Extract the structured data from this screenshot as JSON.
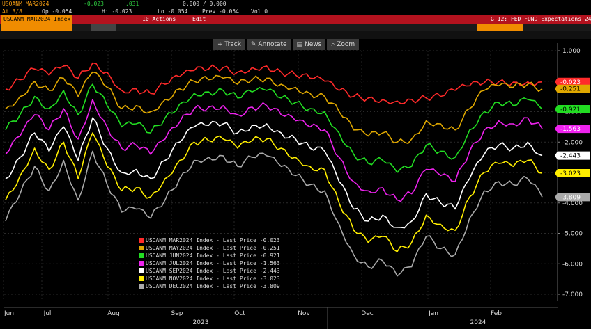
{
  "header": {
    "security": "USOANM MAR2024",
    "change": "-0.023",
    "change2": ".031",
    "value_range": "0.000 / 0.000",
    "at_label": "At 3/8",
    "op": "Op -0.054",
    "hi": "Hi -0.023",
    "lo": "Lo -0.054",
    "prev": "Prev -0.054",
    "vol": "Vol 0",
    "ticker_box": "USOANM MAR2024 Index",
    "actions_label": "10 Actions",
    "edit_label": "Edit",
    "page_title": "G 12: FED FUND Expectations 24"
  },
  "toolbar": {
    "track": "Track",
    "annotate": "Annotate",
    "news": "News",
    "zoom": "Zoom"
  },
  "icons": [
    "crosshair-icon",
    "pencil-icon",
    "news-icon",
    "magnifier-icon"
  ],
  "chart_data": {
    "type": "line",
    "x_axis": {
      "months": [
        "Jun",
        "Jul",
        "Aug",
        "Sep",
        "Oct",
        "Nov",
        "Dec",
        "Jan",
        "Feb"
      ],
      "years": [
        "2023",
        "2024"
      ]
    },
    "y_axis": {
      "ticks": [
        "1.000",
        "-0.000",
        "-1.000",
        "-2.000",
        "-3.000",
        "-4.000",
        "-5.000",
        "-6.000",
        "-7.000"
      ],
      "range": [
        -7.2,
        1.3
      ],
      "position": "right"
    },
    "grid": true,
    "legend_position": "bottom-left",
    "series": [
      {
        "name": "USOANM MAR2024 Index - Last Price -0.023",
        "last": "-0.023",
        "color": "#ff2a2a",
        "values": [
          -0.25,
          0.05,
          0.4,
          0.2,
          0.5,
          0.1,
          0.6,
          0.3,
          -0.3,
          -0.25,
          -0.4,
          -0.1,
          0.15,
          0.35,
          0.4,
          0.45,
          0.3,
          0.45,
          0.5,
          0.3,
          0.2,
          0.1,
          0.0,
          -0.3,
          -0.5,
          -0.55,
          -0.6,
          -0.65,
          -0.6,
          -0.55,
          -0.5,
          -0.3,
          -0.15,
          -0.05,
          -0.02,
          -0.03,
          -0.02,
          -0.023
        ]
      },
      {
        "name": "USOANM MAY2024 Index - Last Price -0.251",
        "last": "-0.251",
        "color": "#e0a800",
        "values": [
          -0.9,
          -0.5,
          0.0,
          -0.3,
          0.1,
          -0.5,
          0.3,
          -0.2,
          -0.9,
          -0.8,
          -1.0,
          -0.6,
          -0.25,
          0.0,
          0.05,
          0.1,
          -0.1,
          0.05,
          0.1,
          -0.1,
          -0.2,
          -0.4,
          -0.5,
          -1.0,
          -1.6,
          -1.8,
          -1.7,
          -2.0,
          -1.9,
          -1.3,
          -1.4,
          -1.6,
          -0.9,
          -0.3,
          -0.15,
          -0.2,
          -0.1,
          -0.251
        ]
      },
      {
        "name": "USOANM JUN2024 Index - Last Price -0.921",
        "last": "-0.921",
        "color": "#22dd22",
        "values": [
          -1.6,
          -1.1,
          -0.5,
          -0.9,
          -0.3,
          -1.1,
          -0.1,
          -0.8,
          -1.5,
          -1.4,
          -1.7,
          -1.2,
          -0.75,
          -0.4,
          -0.35,
          -0.3,
          -0.55,
          -0.35,
          -0.3,
          -0.55,
          -0.7,
          -0.9,
          -1.0,
          -1.7,
          -2.4,
          -2.7,
          -2.6,
          -3.0,
          -2.8,
          -2.1,
          -2.3,
          -2.5,
          -1.6,
          -1.0,
          -0.7,
          -0.8,
          -0.6,
          -0.921
        ]
      },
      {
        "name": "USOANM JUL2024 Index - Last Price -1.563",
        "last": "-1.563",
        "color": "#ee22ee",
        "values": [
          -2.4,
          -1.8,
          -1.1,
          -1.6,
          -0.9,
          -1.9,
          -0.6,
          -1.5,
          -2.2,
          -2.1,
          -2.4,
          -1.9,
          -1.35,
          -0.9,
          -0.85,
          -0.8,
          -1.1,
          -0.85,
          -0.8,
          -1.1,
          -1.3,
          -1.5,
          -1.6,
          -2.5,
          -3.3,
          -3.6,
          -3.5,
          -3.9,
          -3.7,
          -2.9,
          -3.1,
          -3.3,
          -2.3,
          -1.6,
          -1.3,
          -1.4,
          -1.2,
          -1.563
        ]
      },
      {
        "name": "USOANM SEP2024 Index - Last Price -2.443",
        "last": "-2.443",
        "color": "#ffffff",
        "values": [
          -3.2,
          -2.5,
          -1.7,
          -2.3,
          -1.5,
          -2.6,
          -1.2,
          -2.2,
          -3.0,
          -2.9,
          -3.2,
          -2.6,
          -2.0,
          -1.5,
          -1.45,
          -1.4,
          -1.7,
          -1.45,
          -1.4,
          -1.7,
          -1.9,
          -2.2,
          -2.3,
          -3.3,
          -4.2,
          -4.6,
          -4.4,
          -4.8,
          -4.6,
          -3.7,
          -4.0,
          -4.2,
          -3.2,
          -2.4,
          -2.1,
          -2.2,
          -2.0,
          -2.443
        ]
      },
      {
        "name": "USOANM NOV2024 Index - Last Price -3.023",
        "last": "-3.023",
        "color": "#ffee00",
        "values": [
          -3.9,
          -3.1,
          -2.2,
          -2.9,
          -2.0,
          -3.2,
          -1.7,
          -2.8,
          -3.6,
          -3.5,
          -3.8,
          -3.2,
          -2.6,
          -2.0,
          -1.95,
          -1.9,
          -2.2,
          -1.95,
          -1.9,
          -2.2,
          -2.5,
          -2.8,
          -2.9,
          -4.0,
          -4.9,
          -5.3,
          -5.1,
          -5.6,
          -5.3,
          -4.4,
          -4.7,
          -4.9,
          -3.8,
          -3.0,
          -2.7,
          -2.8,
          -2.6,
          -3.023
        ]
      },
      {
        "name": "USOANM DEC2024 Index - Last Price -3.809",
        "last": "-3.809",
        "color": "#aaaaaa",
        "values": [
          -4.6,
          -3.7,
          -2.8,
          -3.6,
          -2.6,
          -3.9,
          -2.3,
          -3.4,
          -4.3,
          -4.2,
          -4.5,
          -3.9,
          -3.2,
          -2.6,
          -2.5,
          -2.45,
          -2.8,
          -2.5,
          -2.45,
          -2.8,
          -3.1,
          -3.4,
          -3.6,
          -4.7,
          -5.7,
          -6.1,
          -5.9,
          -6.4,
          -6.1,
          -5.1,
          -5.5,
          -5.7,
          -4.5,
          -3.6,
          -3.3,
          -3.4,
          -3.2,
          -3.809
        ]
      }
    ]
  }
}
